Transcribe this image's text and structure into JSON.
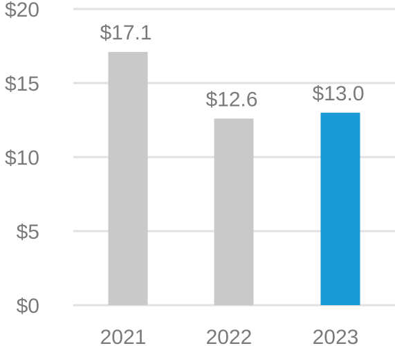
{
  "chart_data": {
    "type": "bar",
    "categories": [
      "2021",
      "2022",
      "2023"
    ],
    "values": [
      17.1,
      12.6,
      13.0
    ],
    "value_labels": [
      "$17.1",
      "$12.6",
      "$13.0"
    ],
    "y_tick_labels": [
      "$0",
      "$5",
      "$10",
      "$15",
      "$20"
    ],
    "y_ticks": [
      0,
      5,
      10,
      15,
      20
    ],
    "ylim": [
      0,
      20
    ],
    "title": "",
    "xlabel": "",
    "ylabel": "",
    "grid": true,
    "legend": "none",
    "colors": {
      "default_bar": "#c9c9ca",
      "highlight_bar": "#1a9ad6",
      "grid": "#e1e1e1",
      "text": "#7a7a7a"
    },
    "highlight_index": 2
  }
}
